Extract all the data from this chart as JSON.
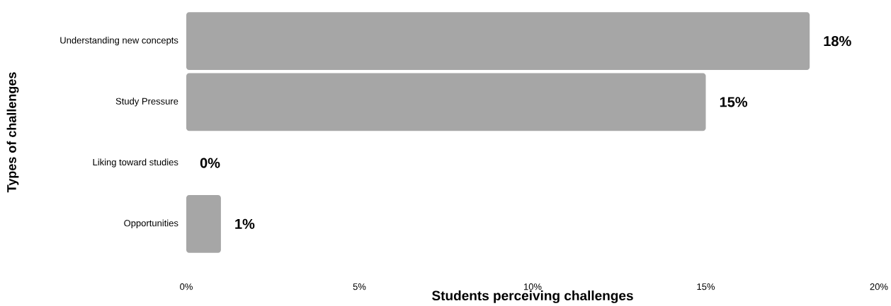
{
  "chart_data": {
    "type": "bar",
    "orientation": "horizontal",
    "categories": [
      "Understanding new concepts",
      "Study Pressure",
      "Liking toward studies",
      "Opportunities"
    ],
    "values": [
      18,
      15,
      0,
      1
    ],
    "value_labels": [
      "18%",
      "15%",
      "0%",
      "1%"
    ],
    "color": "#a6a6a6",
    "xlabel": "Students perceiving challenges",
    "ylabel": "Types of challenges",
    "xlim": [
      0,
      20
    ],
    "xticks": [
      {
        "value": 0,
        "label": "0%"
      },
      {
        "value": 5,
        "label": "5%"
      },
      {
        "value": 10,
        "label": "10%"
      },
      {
        "value": 15,
        "label": "15%"
      },
      {
        "value": 20,
        "label": "20%"
      }
    ],
    "grid": false
  }
}
